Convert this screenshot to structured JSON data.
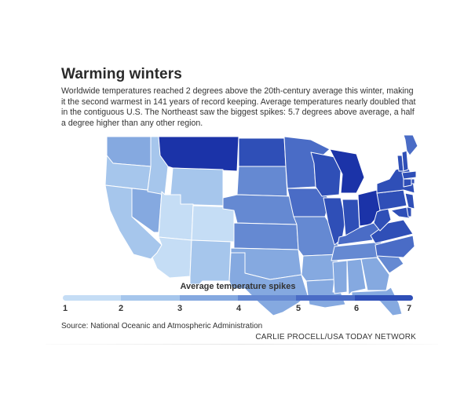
{
  "title": "Warming winters",
  "dek": "Worldwide temperatures reached 2 degrees above the 20th-century average this winter, making it the second warmest in 141 years of record keeping. Average temperatures nearly doubled that in the contiguous U.S. The Northeast saw the biggest spikes: 5.7 degrees above average, a half a degree higher than any other region.",
  "legend": {
    "title": "Average temperature spikes",
    "ticks": [
      "1",
      "2",
      "3",
      "4",
      "5",
      "6",
      "7"
    ],
    "colors": [
      "#c5ddf5",
      "#a6c6ec",
      "#85a9e0",
      "#6589d2",
      "#4a6cc6",
      "#2f4fb7",
      "#1b33a8"
    ]
  },
  "source": "Source: National Oceanic and Atmospheric Administration",
  "credit": "CARLIE PROCELL/USA TODAY NETWORK",
  "map": {
    "type": "choropleth",
    "region": "Contiguous United States",
    "states": {
      "WA": 3,
      "OR": 2,
      "CA": 2,
      "NV": 3,
      "ID": 2,
      "MT": 7,
      "WY": 2,
      "UT": 1,
      "AZ": 1,
      "CO": 1,
      "NM": 2,
      "ND": 6,
      "SD": 4,
      "NE": 4,
      "KS": 4,
      "OK": 3,
      "TX": 3,
      "MN": 5,
      "IA": 5,
      "MO": 4,
      "AR": 3,
      "LA": 3,
      "WI": 6,
      "IL": 6,
      "MI": 7,
      "IN": 6,
      "OH": 7,
      "KY": 5,
      "TN": 4,
      "MS": 3,
      "AL": 3,
      "GA": 3,
      "FL": 3,
      "SC": 4,
      "NC": 5,
      "VA": 6,
      "WV": 6,
      "PA": 6,
      "NY": 6,
      "MD": 6,
      "DE": 6,
      "NJ": 6,
      "CT": 6,
      "RI": 6,
      "MA": 6,
      "VT": 6,
      "NH": 6,
      "ME": 5
    }
  }
}
